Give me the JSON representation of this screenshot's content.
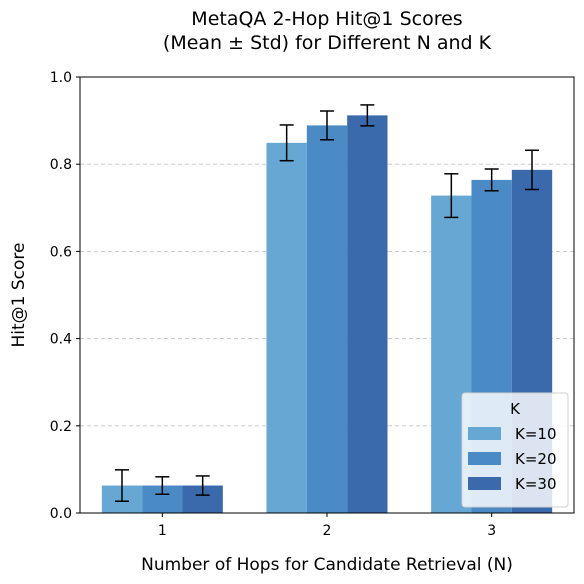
{
  "chart_data": {
    "type": "bar",
    "title_lines": [
      "MetaQA 2-Hop Hit@1 Scores",
      "(Mean ± Std) for Different N and K"
    ],
    "xlabel": "Number of Hops for Candidate Retrieval (N)",
    "ylabel": "Hit@1 Score",
    "categories": [
      "1",
      "2",
      "3"
    ],
    "ylim": [
      0,
      1.0
    ],
    "yticks": [
      0.0,
      0.2,
      0.4,
      0.6,
      0.8,
      1.0
    ],
    "ytick_labels": [
      "0.0",
      "0.2",
      "0.4",
      "0.6",
      "0.8",
      "1.0"
    ],
    "grid": "horizontal dashed",
    "legend": {
      "title": "K",
      "placement": "lower-right"
    },
    "series": [
      {
        "name": "K=10",
        "color": "#66a7d4",
        "values": [
          0.063,
          0.849,
          0.728
        ],
        "std": [
          0.036,
          0.041,
          0.05
        ]
      },
      {
        "name": "K=20",
        "color": "#4a8bc6",
        "values": [
          0.063,
          0.889,
          0.764
        ],
        "std": [
          0.02,
          0.033,
          0.025
        ]
      },
      {
        "name": "K=30",
        "color": "#3a6aac",
        "values": [
          0.063,
          0.912,
          0.787
        ],
        "std": [
          0.022,
          0.024,
          0.045
        ]
      }
    ]
  }
}
